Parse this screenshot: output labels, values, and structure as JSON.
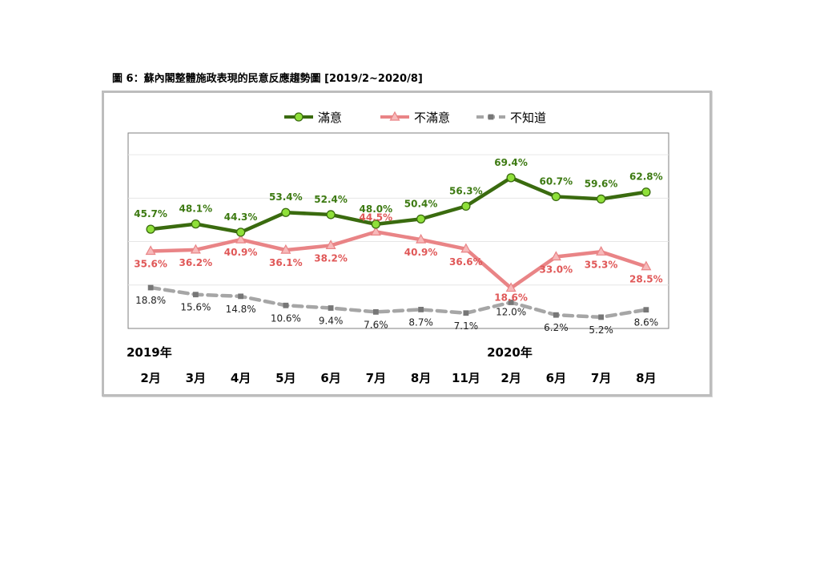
{
  "figure_title": "圖 6：蘇內閣整體施政表現的民意反應趨勢圖  [2019/2~2020/8]",
  "colors": {
    "satisfied_line": "#3a6b0f",
    "satisfied_marker": "#8fe03a",
    "satisfied_label": "#3d7a12",
    "dissatisfied_line": "#e98486",
    "dissatisfied_label": "#e05858",
    "unknown_line": "#a6a6a6",
    "unknown_label": "#222222"
  },
  "chart_data": {
    "type": "line",
    "year_labels": [
      {
        "label": "2019年",
        "category_index": 0
      },
      {
        "label": "2020年",
        "category_index": 8
      }
    ],
    "categories": [
      "2月",
      "3月",
      "4月",
      "5月",
      "6月",
      "7月",
      "8月",
      "11月",
      "2月",
      "6月",
      "7月",
      "8月"
    ],
    "y_unit": "%",
    "ylim": [
      0,
      90
    ],
    "grid": true,
    "legend_position": "top",
    "series": [
      {
        "name": "滿意",
        "values": [
          45.7,
          48.1,
          44.3,
          53.4,
          52.4,
          48.0,
          50.4,
          56.3,
          69.4,
          60.7,
          59.6,
          62.8
        ],
        "labels": [
          "45.7%",
          "48.1%",
          "44.3%",
          "53.4%",
          "52.4%",
          "48.0%",
          "50.4%",
          "56.3%",
          "69.4%",
          "60.7%",
          "59.6%",
          "62.8%"
        ]
      },
      {
        "name": "不滿意",
        "values": [
          35.6,
          36.2,
          40.9,
          36.1,
          38.2,
          44.5,
          40.9,
          36.6,
          18.6,
          33.0,
          35.3,
          28.5
        ],
        "labels": [
          "35.6%",
          "36.2%",
          "40.9%",
          "36.1%",
          "38.2%",
          "44.5%",
          "40.9%",
          "36.6%",
          "18.6%",
          "33.0%",
          "35.3%",
          "28.5%"
        ]
      },
      {
        "name": "不知道",
        "values": [
          18.8,
          15.6,
          14.8,
          10.6,
          9.4,
          7.6,
          8.7,
          7.1,
          12.0,
          6.2,
          5.2,
          8.6
        ],
        "labels": [
          "18.8%",
          "15.6%",
          "14.8%",
          "10.6%",
          "9.4%",
          "7.6%",
          "8.7%",
          "7.1%",
          "12.0%",
          "6.2%",
          "5.2%",
          "8.6%"
        ]
      }
    ]
  }
}
